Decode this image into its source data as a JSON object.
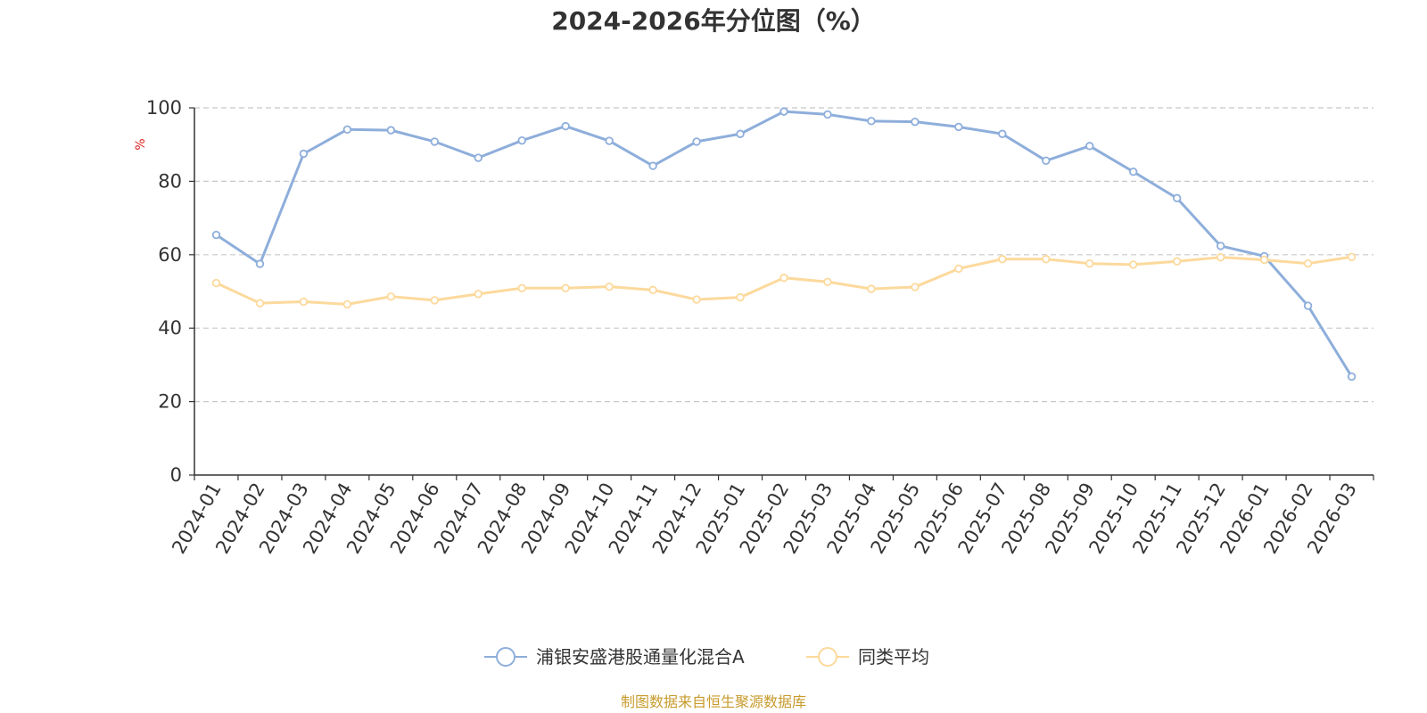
{
  "chart_data": {
    "type": "line",
    "title": "2024-2026年分位图（%）",
    "ylabel": "%",
    "ylim": [
      0,
      100
    ],
    "yticks": [
      0,
      20,
      40,
      60,
      80,
      100
    ],
    "grid": true,
    "legend_position": "bottom-center",
    "categories": [
      "2024-01",
      "2024-02",
      "2024-03",
      "2024-04",
      "2024-05",
      "2024-06",
      "2024-07",
      "2024-08",
      "2024-09",
      "2024-10",
      "2024-11",
      "2024-12",
      "2025-01",
      "2025-02",
      "2025-03",
      "2025-04",
      "2025-05",
      "2025-06",
      "2025-07",
      "2025-08",
      "2025-09",
      "2025-10",
      "2025-11",
      "2025-12",
      "2026-01",
      "2026-02",
      "2026-03"
    ],
    "series": [
      {
        "name": "浦银安盛港股通量化混合A",
        "color": "#8eaedb",
        "values": [
          65.4,
          57.5,
          87.5,
          94.1,
          93.9,
          90.8,
          86.4,
          91.1,
          95.0,
          91.0,
          84.2,
          90.8,
          92.9,
          99.0,
          98.2,
          96.4,
          96.2,
          94.8,
          92.9,
          85.6,
          89.6,
          82.6,
          75.4,
          62.4,
          59.6,
          46.1,
          26.8
        ]
      },
      {
        "name": "同类平均",
        "color": "#fcd99c",
        "values": [
          52.3,
          46.8,
          47.2,
          46.5,
          48.6,
          47.6,
          49.3,
          50.9,
          50.9,
          51.3,
          50.4,
          47.8,
          48.4,
          53.7,
          52.6,
          50.7,
          51.2,
          56.2,
          58.8,
          58.8,
          57.6,
          57.3,
          58.2,
          59.3,
          58.6,
          57.6,
          59.4
        ]
      }
    ],
    "source_note": "制图数据来自恒生聚源数据库",
    "source_color": "#c79b2c",
    "ylabel_color": "#e02020"
  }
}
